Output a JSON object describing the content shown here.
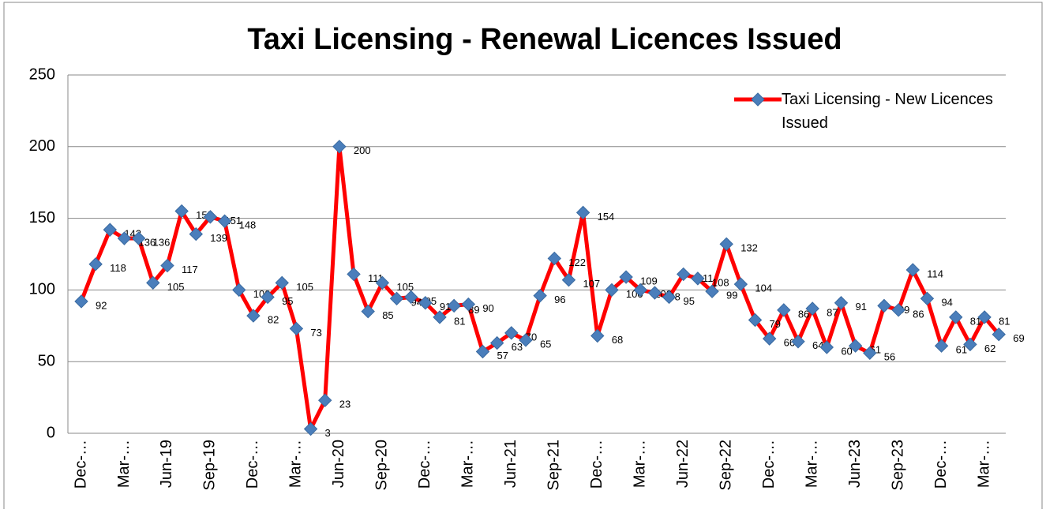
{
  "chart_data": {
    "type": "line",
    "title": "Taxi Licensing - Renewal Licences Issued",
    "categories": [
      "Dec-…",
      null,
      null,
      "Mar-…",
      null,
      null,
      "Jun-19",
      null,
      null,
      "Sep-19",
      null,
      null,
      "Dec-…",
      null,
      null,
      "Mar-…",
      null,
      null,
      "Jun-20",
      null,
      null,
      "Sep-20",
      null,
      null,
      "Dec-…",
      null,
      null,
      "Mar-…",
      null,
      null,
      "Jun-21",
      null,
      null,
      "Sep-21",
      null,
      null,
      "Dec-…",
      null,
      null,
      "Mar-…",
      null,
      null,
      "Jun-22",
      null,
      null,
      "Sep-22",
      null,
      null,
      "Dec-…",
      null,
      null,
      "Mar-…",
      null,
      null,
      "Jun-23",
      null,
      null,
      "Sep-23",
      null,
      null,
      "Dec-…",
      null,
      null,
      "Mar-…",
      null
    ],
    "series": [
      {
        "name": "Taxi Licensing - New Licences Issued",
        "color": "#ff0000",
        "marker_color": "#4a7ebb",
        "values": [
          92,
          118,
          142,
          136,
          136,
          105,
          117,
          155,
          139,
          151,
          148,
          100,
          82,
          95,
          105,
          73,
          3,
          23,
          200,
          111,
          85,
          105,
          94,
          95,
          91,
          81,
          89,
          90,
          57,
          63,
          70,
          65,
          96,
          122,
          107,
          154,
          68,
          100,
          109,
          100,
          98,
          95,
          111,
          108,
          99,
          132,
          104,
          79,
          66,
          86,
          64,
          87,
          60,
          91,
          61,
          56,
          89,
          86,
          114,
          94,
          61,
          81,
          62,
          81,
          69
        ]
      }
    ],
    "ylim": [
      0,
      250
    ],
    "yticks": [
      0,
      50,
      100,
      150,
      200,
      250
    ],
    "grid": true,
    "legend": "top-right"
  }
}
